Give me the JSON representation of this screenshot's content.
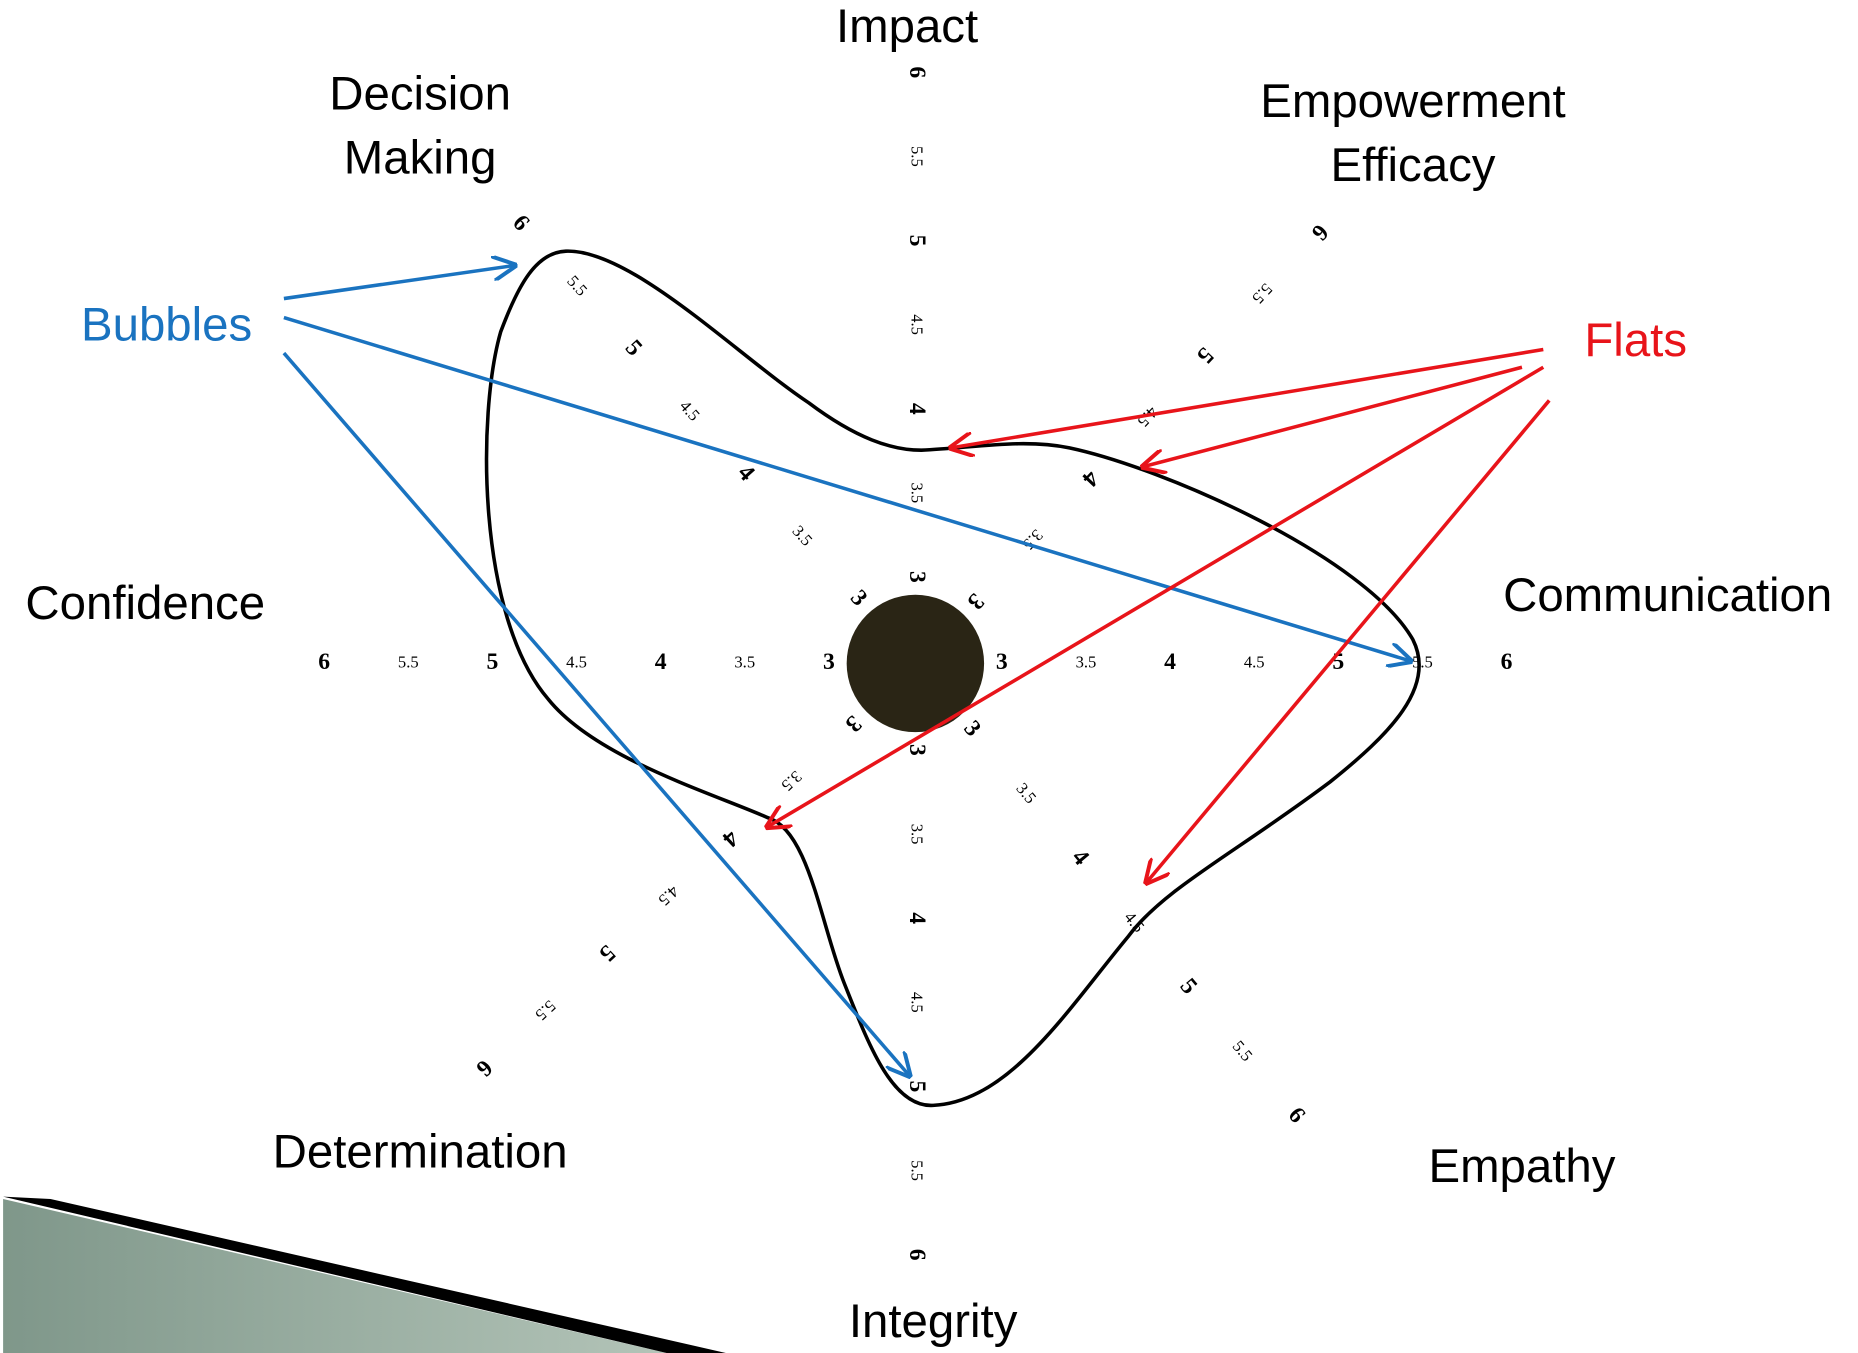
{
  "axes": [
    {
      "lines": [
        "Impact"
      ]
    },
    {
      "lines": [
        "Empowerment",
        "Efficacy"
      ]
    },
    {
      "lines": [
        "Communication"
      ]
    },
    {
      "lines": [
        "Empathy"
      ]
    },
    {
      "lines": [
        "Integrity"
      ]
    },
    {
      "lines": [
        "Determination"
      ]
    },
    {
      "lines": [
        "Confidence"
      ]
    },
    {
      "lines": [
        "Decision",
        "Making"
      ]
    }
  ],
  "scale": [
    "3",
    "3.5",
    "4",
    "4.5",
    "5",
    "5.5",
    "6"
  ],
  "annotations": {
    "bubbles": "Bubbles",
    "flats": "Flats"
  }
}
